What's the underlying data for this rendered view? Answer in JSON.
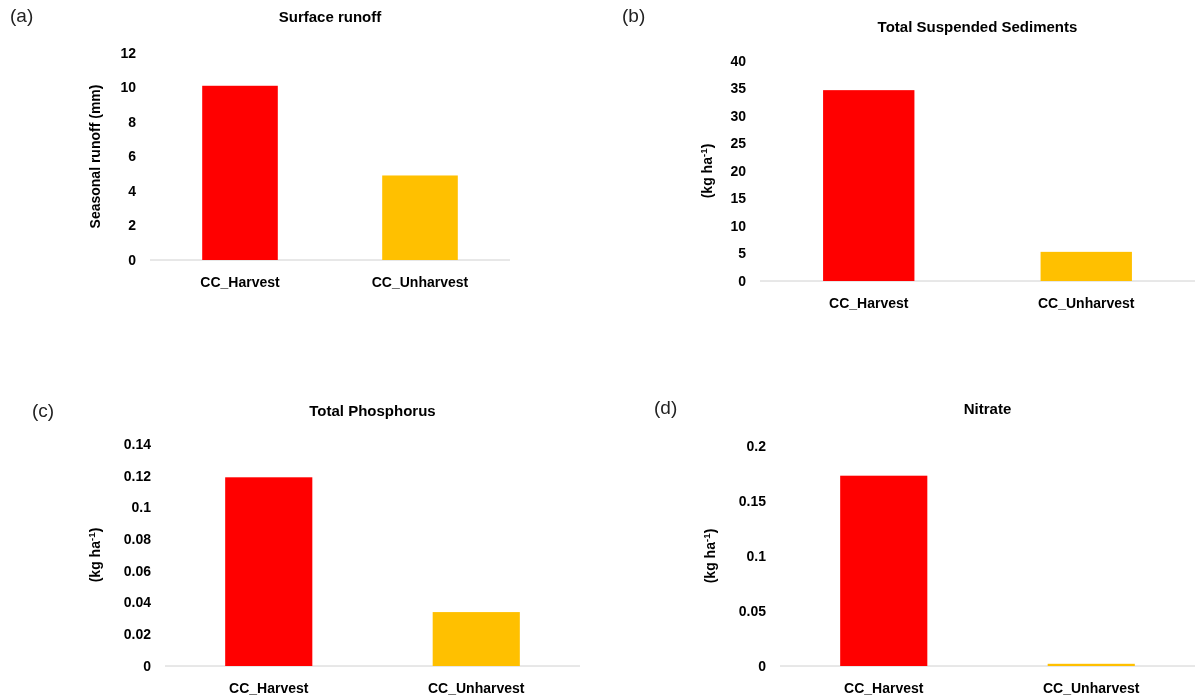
{
  "chart_data": [
    {
      "type": "bar",
      "title": "Surface runoff",
      "ylabel": "Seasonal runoff (mm)",
      "annotations": [
        "(a)"
      ],
      "categories": [
        "CC_Harvest",
        "CC_Unharvest"
      ],
      "values": [
        10.1,
        4.9
      ],
      "colors": [
        "#ff0000",
        "#ffc000"
      ],
      "ylim": [
        0,
        12
      ],
      "yticks": [
        0,
        2,
        4,
        6,
        8,
        10,
        12
      ]
    },
    {
      "type": "bar",
      "title": "Total Suspended Sediments",
      "ylabel": "(kg ha$^{-1}$)",
      "annotations": [
        "(b)"
      ],
      "categories": [
        "CC_Harvest",
        "CC_Unharvest"
      ],
      "values": [
        34.7,
        5.3
      ],
      "colors": [
        "#ff0000",
        "#ffc000"
      ],
      "ylim": [
        0,
        40
      ],
      "yticks": [
        0,
        5,
        10,
        15,
        20,
        25,
        30,
        35,
        40
      ]
    },
    {
      "type": "bar",
      "title": "Total Phosphorus",
      "ylabel": "(kg ha$^{-1}$)",
      "annotations": [
        "(c)"
      ],
      "categories": [
        "CC_Harvest",
        "CC_Unharvest"
      ],
      "values": [
        0.119,
        0.034
      ],
      "colors": [
        "#ff0000",
        "#ffc000"
      ],
      "ylim": [
        0,
        0.14
      ],
      "yticks": [
        0,
        0.02,
        0.04,
        0.06,
        0.08,
        0.1,
        0.12,
        0.14
      ]
    },
    {
      "type": "bar",
      "title": "Nitrate",
      "ylabel": "(kg ha$^{-1}$)",
      "annotations": [
        "(d)"
      ],
      "categories": [
        "CC_Harvest",
        "CC_Unharvest"
      ],
      "values": [
        0.173,
        0.002
      ],
      "colors": [
        "#ff0000",
        "#ffc000"
      ],
      "ylim": [
        0,
        0.2
      ],
      "yticks": [
        0,
        0.05,
        0.1,
        0.15,
        0.2
      ]
    }
  ]
}
